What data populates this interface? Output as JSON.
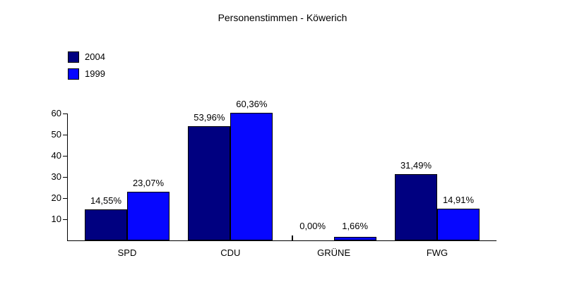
{
  "title": "Personenstimmen - Köwerich",
  "chart_data": {
    "type": "bar",
    "title": "Personenstimmen - Köwerich",
    "categories": [
      "SPD",
      "CDU",
      "GRÜNE",
      "FWG"
    ],
    "series": [
      {
        "name": "2004",
        "color": "#000080",
        "values": [
          14.55,
          53.96,
          0.0,
          31.49
        ],
        "value_labels": [
          "14,55%",
          "53,96%",
          "0,00%",
          "31,49%"
        ]
      },
      {
        "name": "1999",
        "color": "#0606ff",
        "values": [
          23.07,
          60.36,
          1.66,
          14.91
        ],
        "value_labels": [
          "23,07%",
          "60,36%",
          "1,66%",
          "14,91%"
        ]
      }
    ],
    "xlabel": "",
    "ylabel": "",
    "y_ticks": [
      10,
      20,
      30,
      40,
      50,
      60
    ],
    "ylim": [
      0,
      62
    ],
    "grid": false,
    "legend_position": "top-left",
    "axis_color": "#000000",
    "bar_border_color": "#000000",
    "background_color": "#ffffff"
  }
}
